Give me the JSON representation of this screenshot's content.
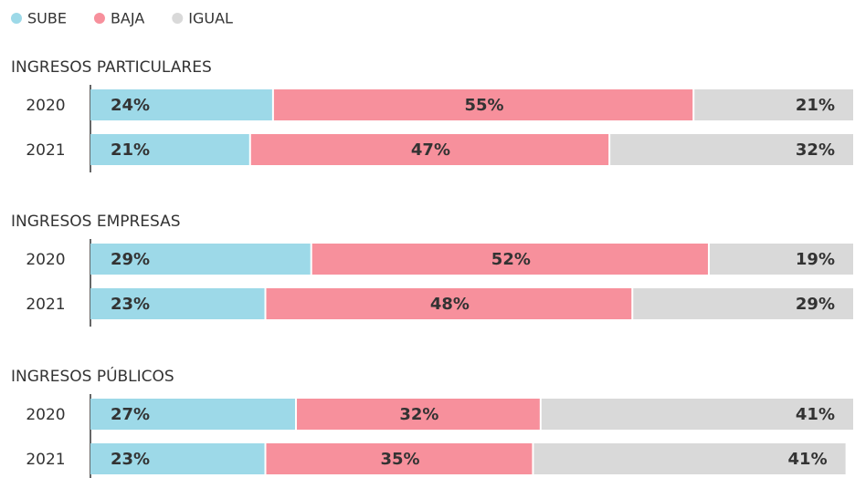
{
  "chart_data": [
    {
      "type": "bar",
      "orientation": "horizontal",
      "stacked": true,
      "title": "INGRESOS PARTICULARES",
      "categories": [
        "2020",
        "2021"
      ],
      "series": [
        {
          "name": "SUBE",
          "color": "#9dd9e8",
          "values": [
            24,
            21
          ],
          "value_labels": [
            "24%",
            "21%"
          ]
        },
        {
          "name": "BAJA",
          "color": "#f7909c",
          "values": [
            55,
            47
          ],
          "value_labels": [
            "55%",
            "47%"
          ]
        },
        {
          "name": "IGUAL",
          "color": "#d9d9d9",
          "values": [
            21,
            32
          ],
          "value_labels": [
            "21%",
            "32%"
          ]
        }
      ]
    },
    {
      "type": "bar",
      "orientation": "horizontal",
      "stacked": true,
      "title": "INGRESOS EMPRESAS",
      "categories": [
        "2020",
        "2021"
      ],
      "series": [
        {
          "values": [
            29,
            23
          ],
          "value_labels": [
            "29%",
            "23%"
          ]
        },
        {
          "values": [
            52,
            48
          ],
          "value_labels": [
            "52%",
            "48%"
          ]
        },
        {
          "values": [
            19,
            29
          ],
          "value_labels": [
            "19%",
            "29%"
          ]
        }
      ]
    },
    {
      "type": "bar",
      "orientation": "horizontal",
      "stacked": true,
      "title": "INGRESOS PÚBLICOS",
      "categories": [
        "2020",
        "2021"
      ],
      "series": [
        {
          "values": [
            27,
            23
          ],
          "value_labels": [
            "27%",
            "23%"
          ]
        },
        {
          "values": [
            32,
            35
          ],
          "value_labels": [
            "32%",
            "35%"
          ]
        },
        {
          "values": [
            41,
            41
          ],
          "value_labels": [
            "41%",
            "41%"
          ]
        }
      ]
    }
  ]
}
